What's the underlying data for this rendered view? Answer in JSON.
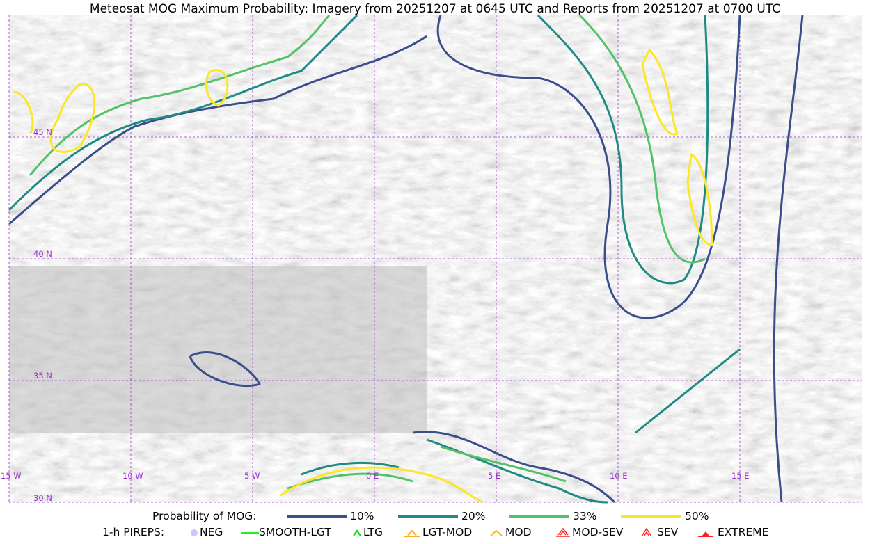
{
  "title": "Meteosat MOG Maximum Probability: Imagery from 20251207 at 0645 UTC and Reports from 20251207 at 0700 UTC",
  "map": {
    "longitude_labels": [
      "15 W",
      "10 W",
      "5 W",
      "0 E",
      "5 E",
      "10 E",
      "15 E"
    ],
    "latitude_labels": [
      "30 N",
      "35 N",
      "40 N",
      "45 N"
    ],
    "gridline_color": "#9932cc",
    "border_color": "#9932cc"
  },
  "legend": {
    "probability": {
      "label": "Probability of MOG:",
      "items": [
        {
          "label": "10%",
          "color": "#3a4e8a"
        },
        {
          "label": "20%",
          "color": "#1f8a84"
        },
        {
          "label": "33%",
          "color": "#52c267"
        },
        {
          "label": "50%",
          "color": "#fde725"
        }
      ]
    },
    "pireps": {
      "label": "1-h PIREPS:",
      "items": [
        {
          "label": "NEG",
          "icon": "neg-circle-icon",
          "color": "#c8c8ff"
        },
        {
          "label": "SMOOTH-LGT",
          "icon": "line-icon",
          "color": "#22ee22"
        },
        {
          "label": "LTG",
          "icon": "caret-icon",
          "color": "#00dd00"
        },
        {
          "label": "LGT-MOD",
          "icon": "caret-bar-icon",
          "color": "#ffb020"
        },
        {
          "label": "MOD",
          "icon": "caret-icon",
          "color": "#ffb020"
        },
        {
          "label": "MOD-SEV",
          "icon": "double-caret-bar-icon",
          "color": "#ff2020"
        },
        {
          "label": "SEV",
          "icon": "double-caret-icon",
          "color": "#ff2020"
        },
        {
          "label": "EXTREME",
          "icon": "filled-triangle-icon",
          "color": "#ff2020"
        }
      ]
    }
  }
}
